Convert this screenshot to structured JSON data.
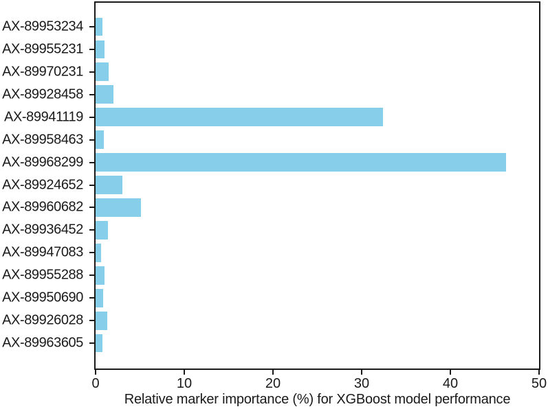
{
  "chart_data": {
    "type": "bar",
    "orientation": "horizontal",
    "title": "",
    "xlabel": "Relative marker importance (%) for XGBoost model performance",
    "ylabel": "",
    "categories": [
      "AX-89953234",
      "AX-89955231",
      "AX-89970231",
      "AX-89928458",
      "AX-89941119",
      "AX-89958463",
      "AX-89968299",
      "AX-89924652",
      "AX-89960682",
      "AX-89936452",
      "AX-89947083",
      "AX-89955288",
      "AX-89950690",
      "AX-89926028",
      "AX-89963605"
    ],
    "values": [
      0.75,
      1.0,
      1.5,
      2.0,
      32.4,
      0.9,
      46.3,
      3.0,
      5.1,
      1.4,
      0.6,
      1.0,
      0.85,
      1.35,
      0.75
    ],
    "xlim": [
      0,
      50
    ],
    "xticks": [
      0,
      10,
      20,
      30,
      40,
      50
    ],
    "bar_color": "#87CEEB",
    "axis_color": "#1a1a1a",
    "grid": false,
    "legend_position": "none"
  }
}
